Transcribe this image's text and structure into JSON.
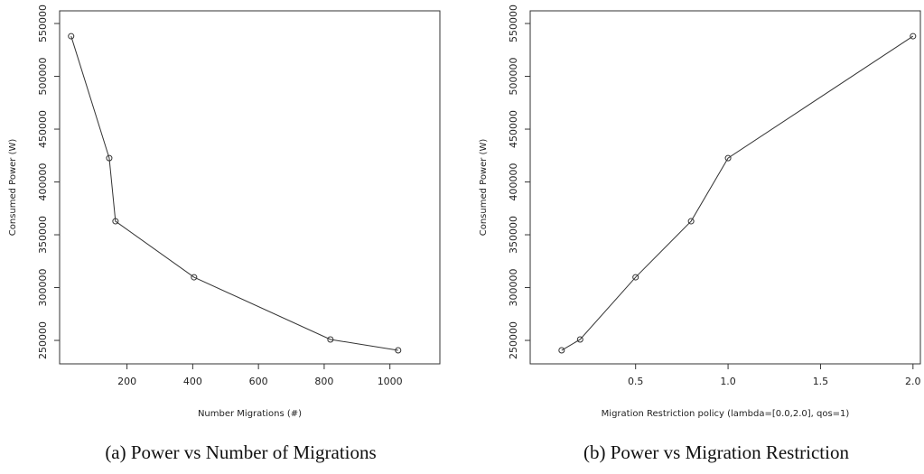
{
  "chart_data": [
    {
      "type": "line",
      "caption": "(a) Power vs Number of Migrations",
      "x_label": "Number Migrations (#)",
      "y_label": "Consumed Power (W)",
      "x": [
        30,
        146,
        165,
        404,
        819,
        1025
      ],
      "series": [
        {
          "color": "#333333",
          "values": [
            538000,
            422600,
            362800,
            309800,
            250900,
            240600
          ]
        }
      ],
      "xlim": [
        -5,
        1152
      ],
      "ylim": [
        227800,
        562000
      ],
      "xticks": [
        200,
        400,
        600,
        800,
        1000
      ],
      "yticks": [
        250000,
        300000,
        350000,
        400000,
        450000,
        500000,
        550000
      ]
    },
    {
      "type": "line",
      "caption": "(b) Power vs Migration Restriction",
      "x_label": "Migration Restriction policy (lambda=[0.0,2.0], qos=1)",
      "y_label": "Consumed Power (W)",
      "x": [
        0.1,
        0.2,
        0.5,
        0.8,
        1.0,
        2.0
      ],
      "series": [
        {
          "color": "#333333",
          "values": [
            240600,
            250900,
            309800,
            362800,
            422600,
            538000
          ]
        }
      ],
      "xlim": [
        -0.07,
        2.04
      ],
      "ylim": [
        227800,
        562000
      ],
      "xticks": [
        0.5,
        {
          "value": 1.0,
          "label": "1.0"
        },
        1.5,
        {
          "value": 2.0,
          "label": "2.0"
        }
      ],
      "yticks": [
        250000,
        300000,
        350000,
        400000,
        450000,
        500000,
        550000
      ]
    }
  ]
}
